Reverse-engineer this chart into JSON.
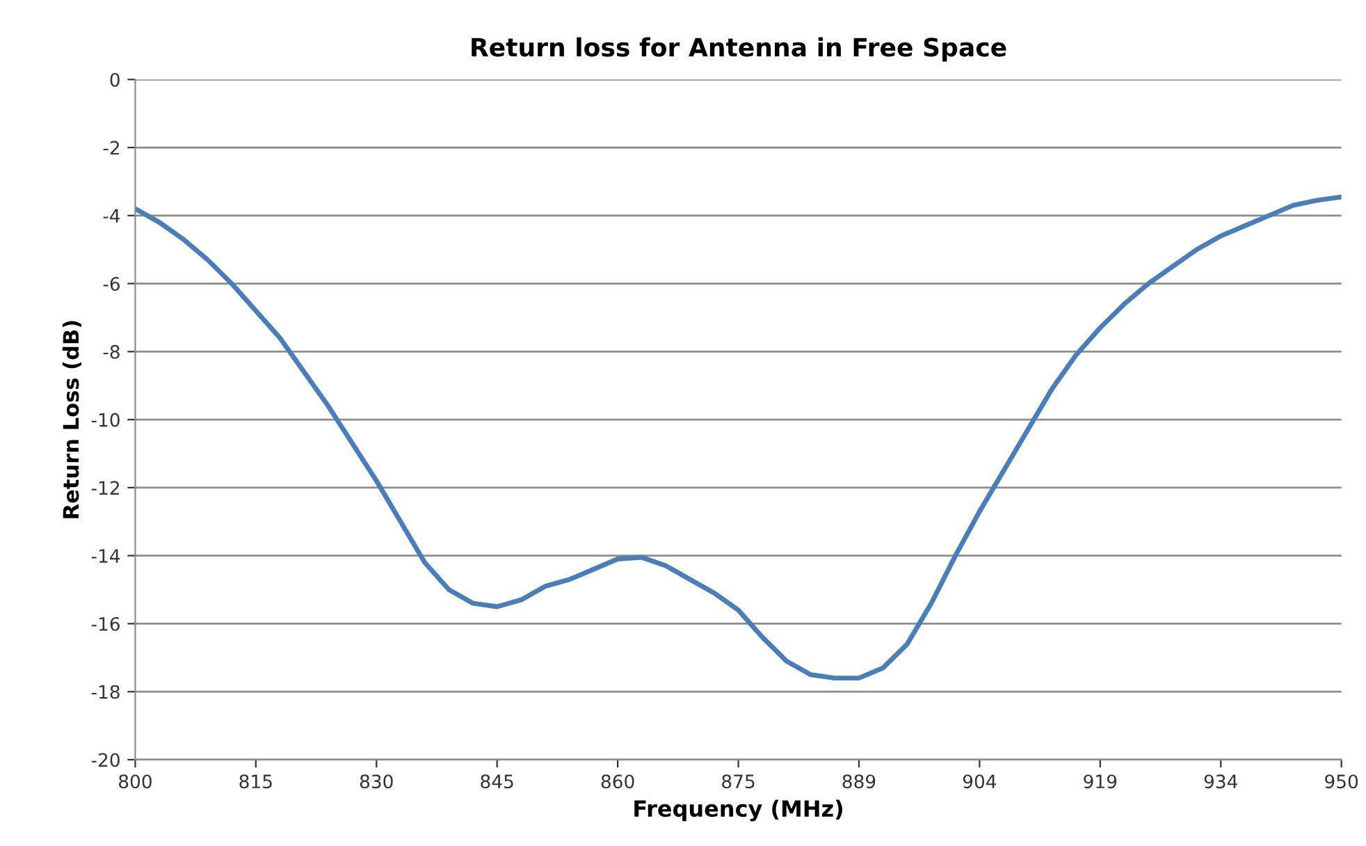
{
  "chart_data": {
    "type": "line",
    "title": "Return loss for Antenna in Free Space",
    "xlabel": "Frequency (MHz)",
    "ylabel": "Return Loss (dB)",
    "categories": [
      "800",
      null,
      null,
      null,
      null,
      "815",
      null,
      null,
      null,
      null,
      "830",
      null,
      null,
      null,
      null,
      "845",
      null,
      null,
      null,
      null,
      "860",
      null,
      null,
      null,
      null,
      "875",
      null,
      null,
      null,
      null,
      "889",
      null,
      null,
      null,
      null,
      "904",
      null,
      null,
      null,
      null,
      "919",
      null,
      null,
      null,
      null,
      "934",
      null,
      null,
      null,
      null,
      "950"
    ],
    "series": [
      {
        "color": "#4a7ebb",
        "values": [
          -3.8,
          -4.2,
          -4.7,
          -5.3,
          -6.0,
          -6.8,
          -7.6,
          -8.6,
          -9.6,
          -10.7,
          -11.8,
          -13.0,
          -14.2,
          -15.0,
          -15.4,
          -15.5,
          -15.3,
          -14.9,
          -14.7,
          -14.4,
          -14.1,
          -14.05,
          -14.3,
          -14.7,
          -15.1,
          -15.6,
          -16.4,
          -17.1,
          -17.5,
          -17.6,
          -17.6,
          -17.3,
          -16.6,
          -15.4,
          -14.0,
          -12.7,
          -11.5,
          -10.3,
          -9.1,
          -8.1,
          -7.3,
          -6.6,
          -6.0,
          -5.5,
          -5.0,
          -4.6,
          -4.3,
          -4.0,
          -3.7,
          -3.55,
          -3.45
        ]
      }
    ],
    "ylim": [
      -20,
      0
    ],
    "yticks": [
      -20,
      -18,
      -16,
      -14,
      -12,
      -10,
      -8,
      -6,
      -4,
      -2,
      0
    ],
    "grid": "y",
    "legend": false,
    "marker": "none",
    "line_style": "solid"
  }
}
